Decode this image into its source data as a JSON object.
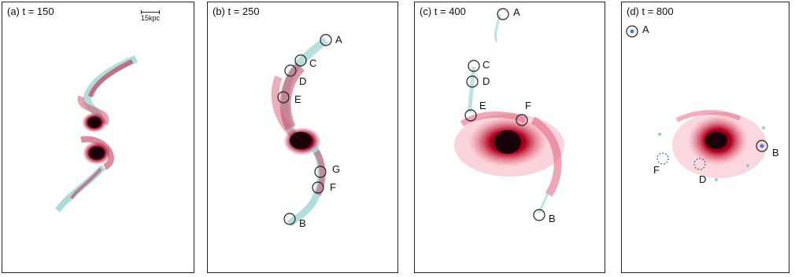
{
  "figure": {
    "panels": [
      {
        "title": "(a) t = 150",
        "scale_label": "15kpc",
        "markers": []
      },
      {
        "title": "(b) t = 250",
        "markers": [
          "A",
          "C",
          "D",
          "E",
          "G",
          "F",
          "B"
        ]
      },
      {
        "title": "(c) t = 400",
        "markers": [
          "A",
          "C",
          "D",
          "E",
          "F",
          "B"
        ]
      },
      {
        "title": "(d) t = 800",
        "markers": [
          "A",
          "B",
          "F",
          "D"
        ]
      }
    ]
  }
}
